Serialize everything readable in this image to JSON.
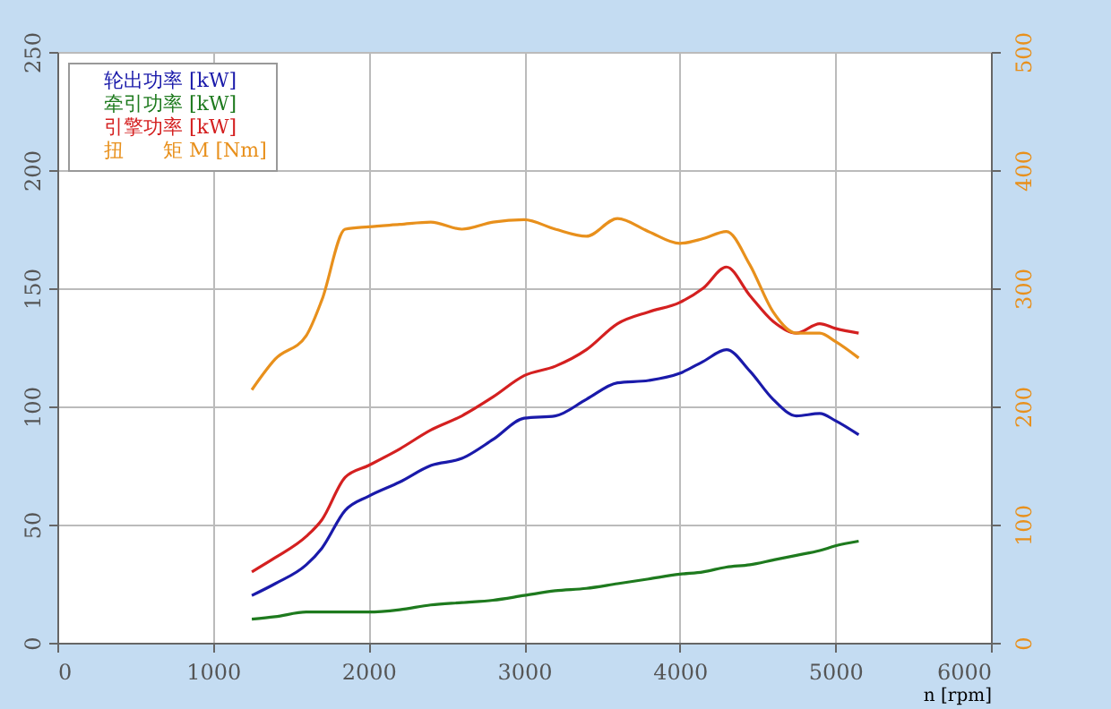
{
  "chart_data": {
    "type": "line",
    "xlabel": "n [rpm]",
    "x": [
      1250,
      1400,
      1600,
      1700,
      1850,
      2000,
      2200,
      2400,
      2600,
      2800,
      3000,
      3200,
      3400,
      3600,
      3800,
      4000,
      4150,
      4300,
      4450,
      4600,
      4750,
      4900,
      5000,
      5150
    ],
    "series": [
      {
        "name": "轮出功率 [kW]",
        "color": "#1a1aaa",
        "values": [
          20,
          25,
          33,
          40,
          56,
          62,
          68,
          75,
          78,
          86,
          95,
          96,
          103,
          110,
          111,
          114,
          119,
          124,
          115,
          103,
          96,
          97,
          94,
          88
        ]
      },
      {
        "name": "牵引功率 [kW]",
        "color": "#1e7a1e",
        "values": [
          10,
          11,
          13,
          13,
          13,
          13,
          14,
          16,
          17,
          18,
          20,
          22,
          23,
          25,
          27,
          29,
          30,
          32,
          33,
          35,
          37,
          39,
          41,
          43
        ]
      },
      {
        "name": "引擎功率 [kW]",
        "color": "#d42020",
        "values": [
          30,
          36,
          45,
          52,
          70,
          75,
          82,
          90,
          96,
          104,
          113,
          117,
          124,
          135,
          140,
          144,
          150,
          159,
          147,
          136,
          131,
          135,
          133,
          131
        ]
      },
      {
        "name": "扭　　矩 M [Nm]",
        "color": "#e8901c",
        "axis": "y2",
        "values": [
          214,
          240,
          260,
          290,
          350,
          352,
          354,
          356,
          350,
          356,
          358,
          350,
          344,
          359,
          348,
          338,
          342,
          348,
          320,
          280,
          262,
          262,
          255,
          241
        ]
      }
    ],
    "xlim": [
      0,
      6000
    ],
    "xticks": [
      0,
      1000,
      2000,
      3000,
      4000,
      5000,
      6000
    ],
    "ylim": [
      0,
      250
    ],
    "yticks": [
      0,
      50,
      100,
      150,
      200,
      250
    ],
    "y2lim": [
      0,
      500
    ],
    "y2ticks": [
      0,
      100,
      200,
      300,
      400,
      500
    ],
    "grid": true,
    "legend": "top left"
  }
}
